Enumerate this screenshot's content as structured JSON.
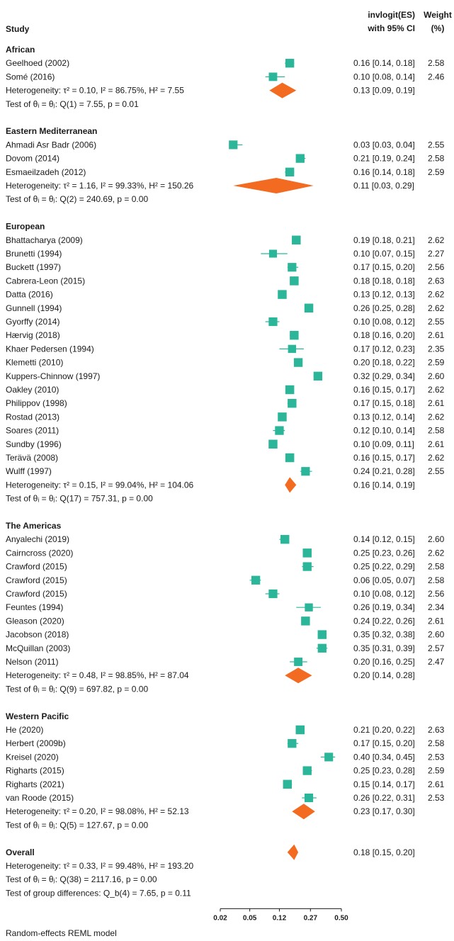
{
  "chart_data": {
    "type": "forest",
    "headers": {
      "study": "Study",
      "es": [
        "invlogit(ES)",
        "with 95% CI"
      ],
      "weight": [
        "Weight",
        "(%)"
      ]
    },
    "scale": "logit",
    "ticks": [
      "0.02",
      "0.05",
      "0.12",
      "0.27",
      "0.50"
    ],
    "groups": [
      {
        "name": "African",
        "studies": [
          {
            "label": "Geelhoed (2002)",
            "es": 0.16,
            "lo": 0.14,
            "hi": 0.18,
            "ci": "0.16 [0.14, 0.18]",
            "weight": "2.58"
          },
          {
            "label": "Somé (2016)",
            "es": 0.1,
            "lo": 0.08,
            "hi": 0.14,
            "ci": "0.10 [0.08, 0.14]",
            "weight": "2.46"
          }
        ],
        "summary": {
          "label": "Heterogeneity: τ² = 0.10, I² = 86.75%, H² = 7.55",
          "es": 0.13,
          "lo": 0.09,
          "hi": 0.19,
          "ci": "0.13 [0.09, 0.19]"
        },
        "test": "Test of θᵢ = θⱼ: Q(1) = 7.55, p = 0.01"
      },
      {
        "name": "Eastern Mediterranean",
        "studies": [
          {
            "label": "Ahmadi Asr Badr (2006)",
            "es": 0.03,
            "lo": 0.03,
            "hi": 0.04,
            "ci": "0.03 [0.03, 0.04]",
            "weight": "2.55"
          },
          {
            "label": "Dovom (2014)",
            "es": 0.21,
            "lo": 0.19,
            "hi": 0.24,
            "ci": "0.21 [0.19, 0.24]",
            "weight": "2.58"
          },
          {
            "label": "Esmaeilzadeh (2012)",
            "es": 0.16,
            "lo": 0.14,
            "hi": 0.18,
            "ci": "0.16 [0.14, 0.18]",
            "weight": "2.59"
          }
        ],
        "summary": {
          "label": "Heterogeneity: τ² = 1.16, I² = 99.33%, H² = 150.26",
          "es": 0.11,
          "lo": 0.03,
          "hi": 0.29,
          "ci": "0.11 [0.03, 0.29]"
        },
        "test": "Test of θᵢ = θⱼ: Q(2) = 240.69, p = 0.00"
      },
      {
        "name": "European",
        "studies": [
          {
            "label": "Bhattacharya (2009)",
            "es": 0.19,
            "lo": 0.18,
            "hi": 0.21,
            "ci": "0.19 [0.18, 0.21]",
            "weight": "2.62"
          },
          {
            "label": "Brunetti (1994)",
            "es": 0.1,
            "lo": 0.07,
            "hi": 0.15,
            "ci": "0.10 [0.07, 0.15]",
            "weight": "2.27"
          },
          {
            "label": "Buckett (1997)",
            "es": 0.17,
            "lo": 0.15,
            "hi": 0.2,
            "ci": "0.17 [0.15, 0.20]",
            "weight": "2.56"
          },
          {
            "label": "Cabrera-Leon (2015)",
            "es": 0.18,
            "lo": 0.18,
            "hi": 0.18,
            "ci": "0.18 [0.18, 0.18]",
            "weight": "2.63"
          },
          {
            "label": "Datta (2016)",
            "es": 0.13,
            "lo": 0.12,
            "hi": 0.13,
            "ci": "0.13 [0.12, 0.13]",
            "weight": "2.62"
          },
          {
            "label": "Gunnell (1994)",
            "es": 0.26,
            "lo": 0.25,
            "hi": 0.28,
            "ci": "0.26 [0.25, 0.28]",
            "weight": "2.62"
          },
          {
            "label": "Gyorffy (2014)",
            "es": 0.1,
            "lo": 0.08,
            "hi": 0.12,
            "ci": "0.10 [0.08, 0.12]",
            "weight": "2.55"
          },
          {
            "label": "Hærvig (2018)",
            "es": 0.18,
            "lo": 0.16,
            "hi": 0.2,
            "ci": "0.18 [0.16, 0.20]",
            "weight": "2.61"
          },
          {
            "label": "Khaer Pedersen (1994)",
            "es": 0.17,
            "lo": 0.12,
            "hi": 0.23,
            "ci": "0.17 [0.12, 0.23]",
            "weight": "2.35"
          },
          {
            "label": "Klemetti (2010)",
            "es": 0.2,
            "lo": 0.18,
            "hi": 0.22,
            "ci": "0.20 [0.18, 0.22]",
            "weight": "2.59"
          },
          {
            "label": "Kuppers-Chinnow (1997)",
            "es": 0.32,
            "lo": 0.29,
            "hi": 0.34,
            "ci": "0.32 [0.29, 0.34]",
            "weight": "2.60"
          },
          {
            "label": "Oakley (2010)",
            "es": 0.16,
            "lo": 0.15,
            "hi": 0.17,
            "ci": "0.16 [0.15, 0.17]",
            "weight": "2.62"
          },
          {
            "label": "Philippov (1998)",
            "es": 0.17,
            "lo": 0.15,
            "hi": 0.18,
            "ci": "0.17 [0.15, 0.18]",
            "weight": "2.61"
          },
          {
            "label": "Rostad (2013)",
            "es": 0.13,
            "lo": 0.12,
            "hi": 0.14,
            "ci": "0.13 [0.12, 0.14]",
            "weight": "2.62"
          },
          {
            "label": "Soares (2011)",
            "es": 0.12,
            "lo": 0.1,
            "hi": 0.14,
            "ci": "0.12 [0.10, 0.14]",
            "weight": "2.58"
          },
          {
            "label": "Sundby (1996)",
            "es": 0.1,
            "lo": 0.09,
            "hi": 0.11,
            "ci": "0.10 [0.09, 0.11]",
            "weight": "2.61"
          },
          {
            "label": "Terävä (2008)",
            "es": 0.16,
            "lo": 0.15,
            "hi": 0.17,
            "ci": "0.16 [0.15, 0.17]",
            "weight": "2.62"
          },
          {
            "label": "Wulff (1997)",
            "es": 0.24,
            "lo": 0.21,
            "hi": 0.28,
            "ci": "0.24 [0.21, 0.28]",
            "weight": "2.55"
          }
        ],
        "summary": {
          "label": "Heterogeneity: τ² = 0.15, I² = 99.04%, H² = 104.06",
          "es": 0.16,
          "lo": 0.14,
          "hi": 0.19,
          "ci": "0.16 [0.14, 0.19]"
        },
        "test": "Test of θᵢ = θⱼ: Q(17) = 757.31, p = 0.00"
      },
      {
        "name": "The Americas",
        "studies": [
          {
            "label": "Anyalechi (2019)",
            "es": 0.14,
            "lo": 0.12,
            "hi": 0.15,
            "ci": "0.14 [0.12, 0.15]",
            "weight": "2.60"
          },
          {
            "label": "Cairncross (2020)",
            "es": 0.25,
            "lo": 0.23,
            "hi": 0.26,
            "ci": "0.25 [0.23, 0.26]",
            "weight": "2.62"
          },
          {
            "label": "Crawford (2015)",
            "es": 0.25,
            "lo": 0.22,
            "hi": 0.29,
            "ci": "0.25 [0.22, 0.29]",
            "weight": "2.58"
          },
          {
            "label": "Crawford (2015)",
            "es": 0.06,
            "lo": 0.05,
            "hi": 0.07,
            "ci": "0.06 [0.05, 0.07]",
            "weight": "2.58"
          },
          {
            "label": "Crawford (2015)",
            "es": 0.1,
            "lo": 0.08,
            "hi": 0.12,
            "ci": "0.10 [0.08, 0.12]",
            "weight": "2.56"
          },
          {
            "label": "Feuntes (1994)",
            "es": 0.26,
            "lo": 0.19,
            "hi": 0.34,
            "ci": "0.26 [0.19, 0.34]",
            "weight": "2.34"
          },
          {
            "label": "Gleason (2020)",
            "es": 0.24,
            "lo": 0.22,
            "hi": 0.26,
            "ci": "0.24 [0.22, 0.26]",
            "weight": "2.61"
          },
          {
            "label": "Jacobson (2018)",
            "es": 0.35,
            "lo": 0.32,
            "hi": 0.38,
            "ci": "0.35 [0.32, 0.38]",
            "weight": "2.60"
          },
          {
            "label": "McQuillan (2003)",
            "es": 0.35,
            "lo": 0.31,
            "hi": 0.39,
            "ci": "0.35 [0.31, 0.39]",
            "weight": "2.57"
          },
          {
            "label": "Nelson (2011)",
            "es": 0.2,
            "lo": 0.16,
            "hi": 0.25,
            "ci": "0.20 [0.16, 0.25]",
            "weight": "2.47"
          }
        ],
        "summary": {
          "label": "Heterogeneity: τ² = 0.48, I² = 98.85%, H² = 87.04",
          "es": 0.2,
          "lo": 0.14,
          "hi": 0.28,
          "ci": "0.20 [0.14, 0.28]"
        },
        "test": "Test of θᵢ = θⱼ: Q(9) = 697.82, p = 0.00"
      },
      {
        "name": "Western Pacific",
        "studies": [
          {
            "label": "He (2020)",
            "es": 0.21,
            "lo": 0.2,
            "hi": 0.22,
            "ci": "0.21 [0.20, 0.22]",
            "weight": "2.63"
          },
          {
            "label": "Herbert (2009b)",
            "es": 0.17,
            "lo": 0.15,
            "hi": 0.2,
            "ci": "0.17 [0.15, 0.20]",
            "weight": "2.58"
          },
          {
            "label": "Kreisel (2020)",
            "es": 0.4,
            "lo": 0.34,
            "hi": 0.45,
            "ci": "0.40 [0.34, 0.45]",
            "weight": "2.53"
          },
          {
            "label": "Righarts (2015)",
            "es": 0.25,
            "lo": 0.23,
            "hi": 0.28,
            "ci": "0.25 [0.23, 0.28]",
            "weight": "2.59"
          },
          {
            "label": "Righarts (2021)",
            "es": 0.15,
            "lo": 0.14,
            "hi": 0.17,
            "ci": "0.15 [0.14, 0.17]",
            "weight": "2.61"
          },
          {
            "label": "van Roode (2015)",
            "es": 0.26,
            "lo": 0.22,
            "hi": 0.31,
            "ci": "0.26 [0.22, 0.31]",
            "weight": "2.53"
          }
        ],
        "summary": {
          "label": "Heterogeneity: τ² = 0.20, I² = 98.08%, H² = 52.13",
          "es": 0.23,
          "lo": 0.17,
          "hi": 0.3,
          "ci": "0.23 [0.17, 0.30]"
        },
        "test": "Test of θᵢ = θⱼ: Q(5) = 127.67, p = 0.00"
      }
    ],
    "overall": {
      "name": "Overall",
      "summary": {
        "label": "Heterogeneity: τ² = 0.33, I² = 99.48%, H² = 193.20",
        "es": 0.18,
        "lo": 0.15,
        "hi": 0.2,
        "ci": "0.18 [0.15, 0.20]"
      },
      "test": "Test of θᵢ = θⱼ: Q(38) = 2117.16, p = 0.00",
      "group_test": "Test of group differences: Q_b(4) = 7.65, p = 0.11"
    },
    "footnote": "Random-effects REML model",
    "colors": {
      "study_marker": "#2bb69a",
      "diamond": "#f26b21",
      "ci_line": "#2bb69a",
      "text": "#1a1a1a"
    }
  }
}
